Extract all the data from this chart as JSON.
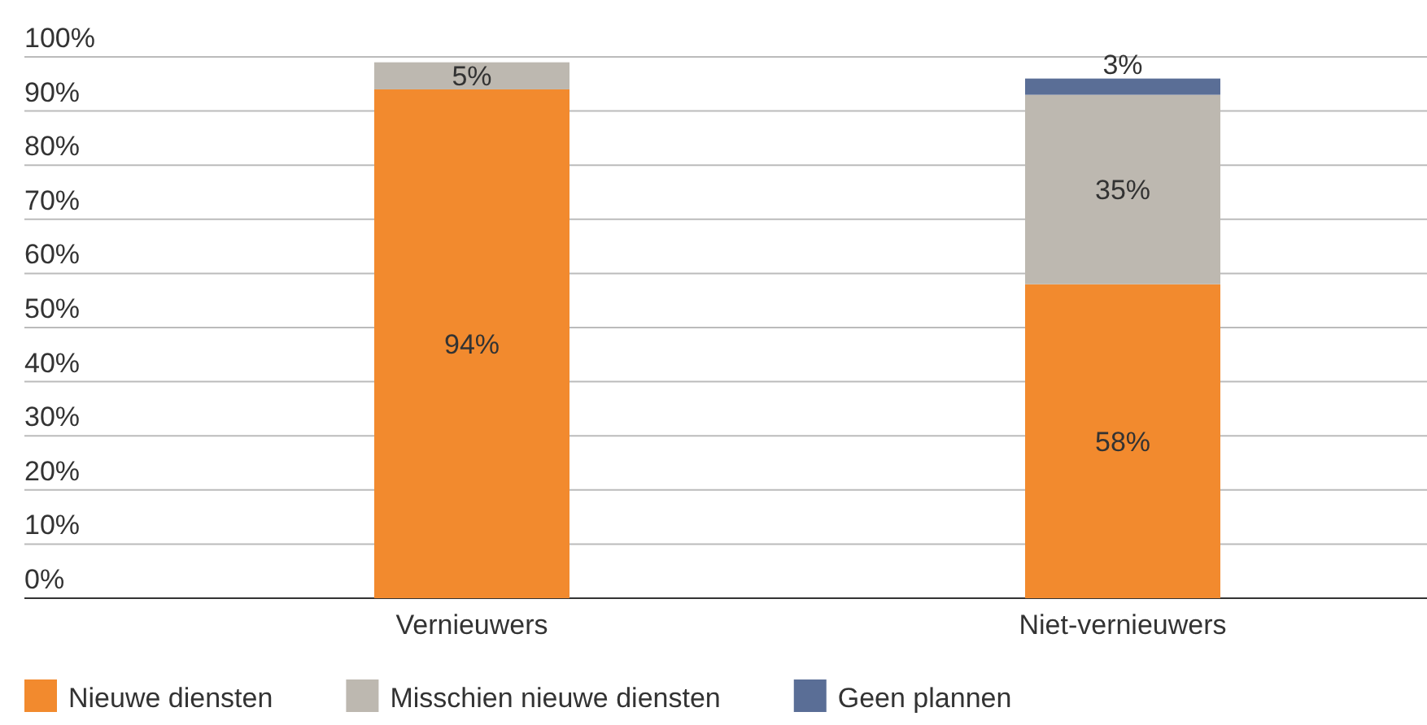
{
  "chart_data": {
    "type": "bar",
    "stacked": true,
    "categories": [
      "Vernieuwers",
      "Niet-vernieuwers"
    ],
    "series": [
      {
        "name": "Nieuwe diensten",
        "color": "#f28a2e",
        "values": [
          94,
          58
        ],
        "value_labels": [
          "94%",
          "58%"
        ]
      },
      {
        "name": "Misschien nieuwe diensten",
        "color": "#bdb8b0",
        "values": [
          5,
          35
        ],
        "value_labels": [
          "5%",
          "35%"
        ]
      },
      {
        "name": "Geen plannen",
        "color": "#5a6e96",
        "values": [
          null,
          3
        ],
        "value_labels": [
          null,
          "3%"
        ]
      }
    ],
    "ylim": [
      0,
      100
    ],
    "yticks": [
      {
        "value": 0,
        "label": "0%"
      },
      {
        "value": 10,
        "label": "10%"
      },
      {
        "value": 20,
        "label": "20%"
      },
      {
        "value": 30,
        "label": "30%"
      },
      {
        "value": 40,
        "label": "40%"
      },
      {
        "value": 50,
        "label": "50%"
      },
      {
        "value": 60,
        "label": "60%"
      },
      {
        "value": 70,
        "label": "70%"
      },
      {
        "value": 80,
        "label": "80%"
      },
      {
        "value": 90,
        "label": "90%"
      },
      {
        "value": 100,
        "label": "100%"
      }
    ],
    "grid": "y",
    "legend": "bottom"
  }
}
